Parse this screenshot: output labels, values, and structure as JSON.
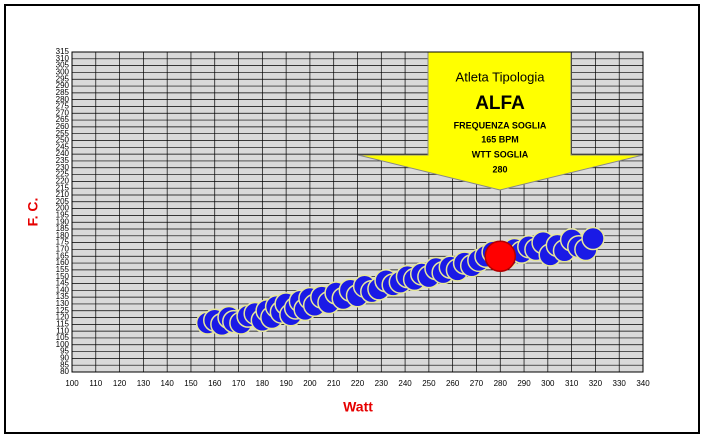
{
  "chart_data": {
    "type": "scatter",
    "x_label": "Watt",
    "y_label": "F. C.",
    "xlim": [
      100,
      340
    ],
    "ylim": [
      80,
      315
    ],
    "xticks": [
      100,
      110,
      120,
      130,
      140,
      150,
      160,
      170,
      180,
      190,
      200,
      210,
      220,
      230,
      240,
      250,
      260,
      270,
      280,
      290,
      300,
      310,
      320,
      330,
      340
    ],
    "yticks": [
      80,
      85,
      90,
      95,
      100,
      105,
      110,
      115,
      120,
      125,
      130,
      135,
      140,
      145,
      150,
      155,
      160,
      165,
      170,
      175,
      180,
      185,
      190,
      195,
      200,
      205,
      210,
      215,
      220,
      225,
      230,
      235,
      240,
      245,
      250,
      255,
      260,
      265,
      270,
      275,
      280,
      285,
      290,
      295,
      300,
      305,
      310,
      315
    ],
    "grid": true,
    "series": [
      {
        "color": "#1a1ae6",
        "x": [
          157,
          160,
          163,
          166,
          168,
          171,
          174,
          177,
          180,
          182,
          184,
          186,
          188,
          190,
          192,
          194,
          196,
          198,
          200,
          202,
          205,
          208,
          211,
          214,
          217,
          220,
          223,
          226,
          229,
          232,
          235,
          238,
          241,
          244,
          247,
          250,
          253,
          256,
          259,
          262,
          265,
          268,
          271,
          274,
          277,
          283,
          286,
          289,
          292,
          295,
          298,
          301,
          304,
          307,
          310,
          313,
          316,
          319
        ],
        "values": [
          116,
          118,
          115,
          120,
          117,
          116,
          121,
          123,
          118,
          125,
          120,
          128,
          124,
          130,
          122,
          127,
          132,
          126,
          134,
          129,
          135,
          131,
          138,
          134,
          140,
          136,
          143,
          139,
          141,
          147,
          144,
          146,
          150,
          148,
          152,
          150,
          156,
          153,
          157,
          155,
          160,
          158,
          162,
          165,
          168,
          165,
          170,
          168,
          172,
          170,
          175,
          166,
          173,
          169,
          177,
          172,
          170,
          178
        ]
      },
      {
        "color": "#ff0000",
        "x": [
          280
        ],
        "values": [
          165
        ]
      }
    ],
    "annotation_lines": [
      "Atleta Tipologia",
      "ALFA",
      "FREQUENZA SOGLIA",
      "165 BPM",
      "WTT SOGLIA",
      "280"
    ]
  }
}
